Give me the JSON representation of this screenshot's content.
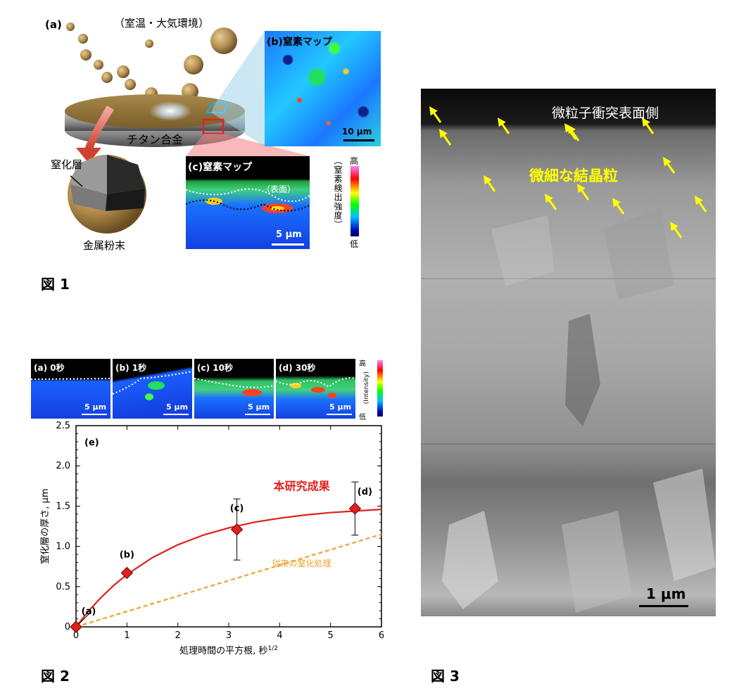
{
  "fig1": {
    "label_a": "(a)",
    "env": "（室温・大気環境）",
    "alloy": "チタン合金",
    "nitride_layer": "窒化層",
    "powder": "金属粉末",
    "map_b_title": "(b)窒素マップ",
    "map_b_scale": "10 μm",
    "map_c_title": "(c)窒素マップ",
    "map_c_surface": "（表面）",
    "map_c_scale": "5 μm",
    "colorbar_high": "高",
    "colorbar_low": "低",
    "colorbar_label": "（窒素検出強度）",
    "caption": "図 1"
  },
  "fig2": {
    "panels": [
      {
        "title": "(a) 0秒",
        "scale": "5 μm"
      },
      {
        "title": "(b) 1秒",
        "scale": "5 μm"
      },
      {
        "title": "(c) 10秒",
        "scale": "5 μm"
      },
      {
        "title": "(d) 30秒",
        "scale": "5 μm"
      }
    ],
    "colorbar_high": "高",
    "colorbar_low": "低",
    "colorbar_label": "(Intensity)",
    "caption": "図 2"
  },
  "chart_data": {
    "type": "line",
    "panel_label": "(e)",
    "xlabel": "処理時間の平方根, 秒",
    "xlabel_sup": "1/2",
    "ylabel": "窒化層の厚さ, μm",
    "xlim": [
      0,
      6
    ],
    "ylim": [
      0,
      2.5
    ],
    "xticks": [
      "0",
      "1",
      "2",
      "3",
      "4",
      "5",
      "6"
    ],
    "yticks": [
      "0",
      "0.5",
      "1.0",
      "1.5",
      "2.0",
      "2.5"
    ],
    "series": [
      {
        "name": "本研究成果",
        "color": "#e0201c",
        "style": "solid",
        "x": [
          0,
          0.25,
          0.5,
          0.75,
          1,
          1.5,
          2,
          2.5,
          3,
          3.5,
          4,
          4.5,
          5,
          5.5,
          6
        ],
        "y": [
          0,
          0.2,
          0.37,
          0.52,
          0.65,
          0.86,
          1.02,
          1.14,
          1.23,
          1.3,
          1.35,
          1.39,
          1.42,
          1.44,
          1.46
        ]
      },
      {
        "name": "従来の窒化処理",
        "color": "#f0a030",
        "style": "dashed",
        "x": [
          0,
          6
        ],
        "y": [
          0,
          1.15
        ]
      }
    ],
    "points": [
      {
        "label": "(a)",
        "x": 0,
        "y": 0,
        "err": 0
      },
      {
        "label": "(b)",
        "x": 1,
        "y": 0.67,
        "err": 0
      },
      {
        "label": "(c)",
        "x": 3.16,
        "y": 1.21,
        "err": 0.38
      },
      {
        "label": "(d)",
        "x": 5.48,
        "y": 1.47,
        "err": 0.33
      }
    ]
  },
  "fig3": {
    "surface_label": "微粒子衝突表面側",
    "grain_label": "微細な結晶粒",
    "scale": "1 μm",
    "caption": "図 3"
  },
  "colors": {
    "accent_red": "#e0201c",
    "accent_orange": "#f0a030",
    "arrow_yellow": "#ffff00"
  }
}
